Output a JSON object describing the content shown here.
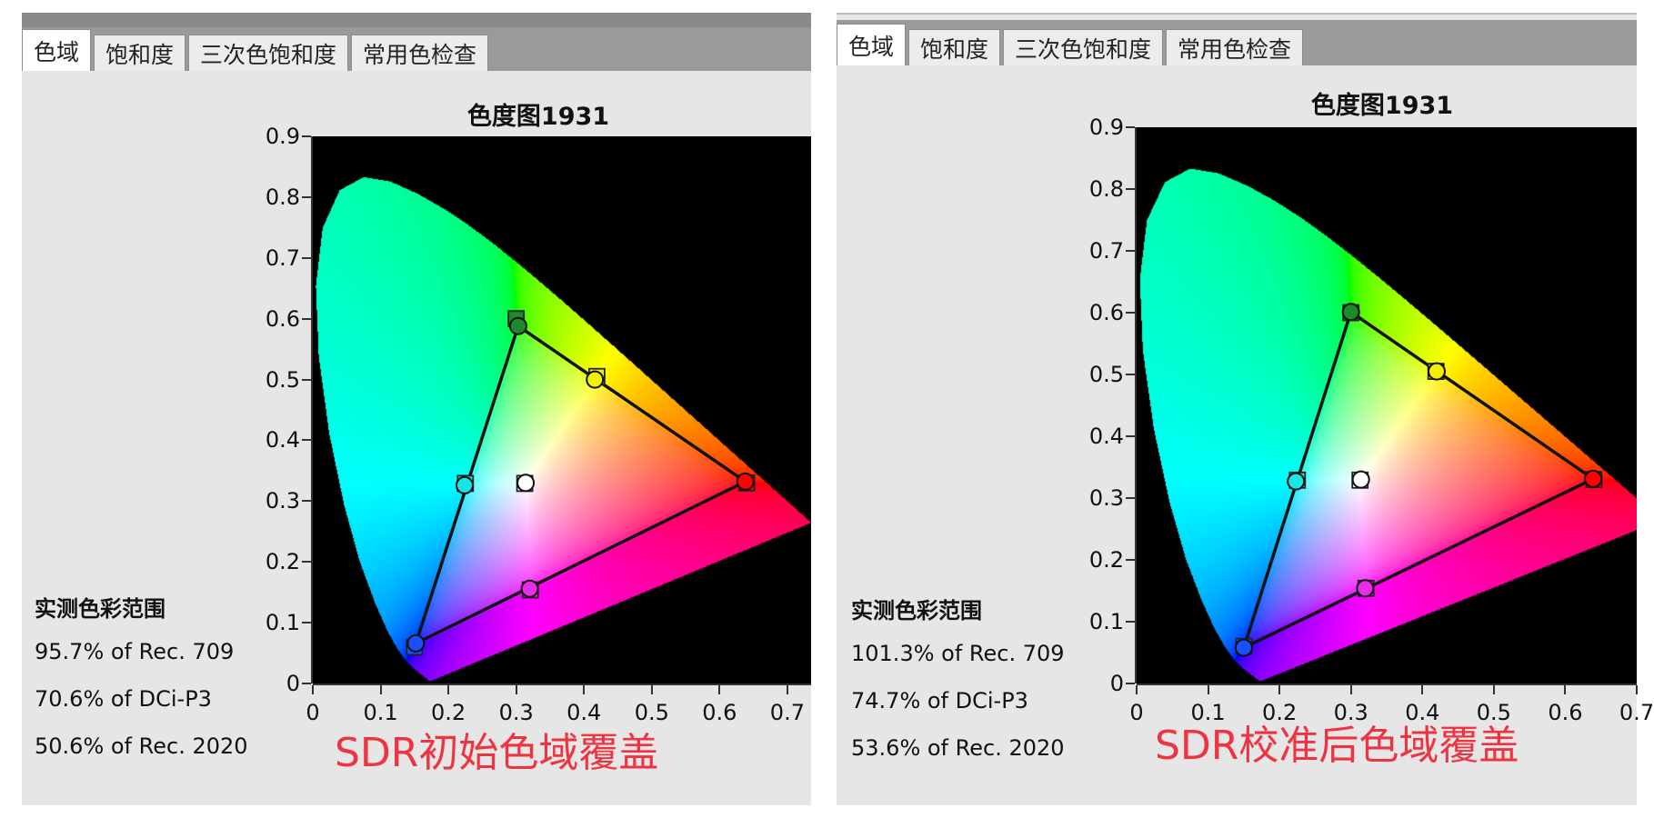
{
  "panels": [
    {
      "tabs": [
        "色域",
        "饱和度",
        "三次色饱和度",
        "常用色检查"
      ],
      "active_tab": 0,
      "chart_title": "色度图1931",
      "coverage_heading": "实测色彩范围",
      "coverage": [
        "95.7% of Rec. 709",
        "70.6% of DCi-P3",
        "50.6% of Rec. 2020"
      ],
      "caption": "SDR初始色域覆盖",
      "x_ticks": [
        "0",
        "0.1",
        "0.2",
        "0.3",
        "0.4",
        "0.5",
        "0.6",
        "0.7"
      ],
      "y_ticks": [
        "0",
        "0.1",
        "0.2",
        "0.3",
        "0.4",
        "0.5",
        "0.6",
        "0.7",
        "0.8",
        "0.9"
      ]
    },
    {
      "tabs": [
        "色域",
        "饱和度",
        "三次色饱和度",
        "常用色检查"
      ],
      "active_tab": 0,
      "chart_title": "色度图1931",
      "coverage_heading": "实测色彩范围",
      "coverage": [
        "101.3% of Rec. 709",
        "74.7% of DCi-P3",
        "53.6% of Rec. 2020"
      ],
      "caption": "SDR校准后色域覆盖",
      "x_ticks": [
        "0",
        "0.1",
        "0.2",
        "0.3",
        "0.4",
        "0.5",
        "0.6",
        "0.7"
      ],
      "y_ticks": [
        "0",
        "0.1",
        "0.2",
        "0.3",
        "0.4",
        "0.5",
        "0.6",
        "0.7",
        "0.8",
        "0.9"
      ]
    }
  ],
  "chart_data": [
    {
      "type": "scatter",
      "title": "色度图1931",
      "xlim": [
        0,
        0.735
      ],
      "ylim": [
        0,
        0.9
      ],
      "target_points": [
        {
          "name": "red",
          "x": 0.64,
          "y": 0.33,
          "color": "#ff0000"
        },
        {
          "name": "green",
          "x": 0.3,
          "y": 0.6,
          "color": "#1c8a2a"
        },
        {
          "name": "blue",
          "x": 0.15,
          "y": 0.06,
          "color": "#1a4fff"
        },
        {
          "name": "cyan",
          "x": 0.225,
          "y": 0.329,
          "color": "#18e6e6"
        },
        {
          "name": "magenta",
          "x": 0.321,
          "y": 0.154,
          "color": "#e62ee6"
        },
        {
          "name": "yellow",
          "x": 0.419,
          "y": 0.505,
          "color": "#f0f000"
        },
        {
          "name": "white",
          "x": 0.3127,
          "y": 0.329,
          "color": "#ffffff"
        }
      ],
      "measured_points": [
        {
          "name": "red",
          "x": 0.638,
          "y": 0.332,
          "color": "#ff0000"
        },
        {
          "name": "green",
          "x": 0.303,
          "y": 0.588,
          "color": "#1c8a2a"
        },
        {
          "name": "blue",
          "x": 0.152,
          "y": 0.066,
          "color": "#1a4fff"
        },
        {
          "name": "cyan",
          "x": 0.224,
          "y": 0.326,
          "color": "#18e6e6"
        },
        {
          "name": "magenta",
          "x": 0.32,
          "y": 0.156,
          "color": "#e62ee6"
        },
        {
          "name": "yellow",
          "x": 0.416,
          "y": 0.5,
          "color": "#f0f000"
        },
        {
          "name": "white",
          "x": 0.314,
          "y": 0.33,
          "color": "#ffffff"
        }
      ]
    },
    {
      "type": "scatter",
      "title": "色度图1931",
      "xlim": [
        0,
        0.7
      ],
      "ylim": [
        0,
        0.9
      ],
      "target_points": [
        {
          "name": "red",
          "x": 0.64,
          "y": 0.33,
          "color": "#ff0000"
        },
        {
          "name": "green",
          "x": 0.3,
          "y": 0.6,
          "color": "#1c8a2a"
        },
        {
          "name": "blue",
          "x": 0.15,
          "y": 0.06,
          "color": "#1a4fff"
        },
        {
          "name": "cyan",
          "x": 0.225,
          "y": 0.329,
          "color": "#18e6e6"
        },
        {
          "name": "magenta",
          "x": 0.321,
          "y": 0.154,
          "color": "#e62ee6"
        },
        {
          "name": "yellow",
          "x": 0.419,
          "y": 0.505,
          "color": "#f0f000"
        },
        {
          "name": "white",
          "x": 0.3127,
          "y": 0.329,
          "color": "#ffffff"
        }
      ],
      "measured_points": [
        {
          "name": "red",
          "x": 0.639,
          "y": 0.331,
          "color": "#ff0000"
        },
        {
          "name": "green",
          "x": 0.3,
          "y": 0.601,
          "color": "#1c8a2a"
        },
        {
          "name": "blue",
          "x": 0.15,
          "y": 0.058,
          "color": "#1a4fff"
        },
        {
          "name": "cyan",
          "x": 0.223,
          "y": 0.327,
          "color": "#18e6e6"
        },
        {
          "name": "magenta",
          "x": 0.32,
          "y": 0.154,
          "color": "#e62ee6"
        },
        {
          "name": "yellow",
          "x": 0.42,
          "y": 0.505,
          "color": "#f0f000"
        },
        {
          "name": "white",
          "x": 0.314,
          "y": 0.33,
          "color": "#ffffff"
        }
      ]
    }
  ]
}
